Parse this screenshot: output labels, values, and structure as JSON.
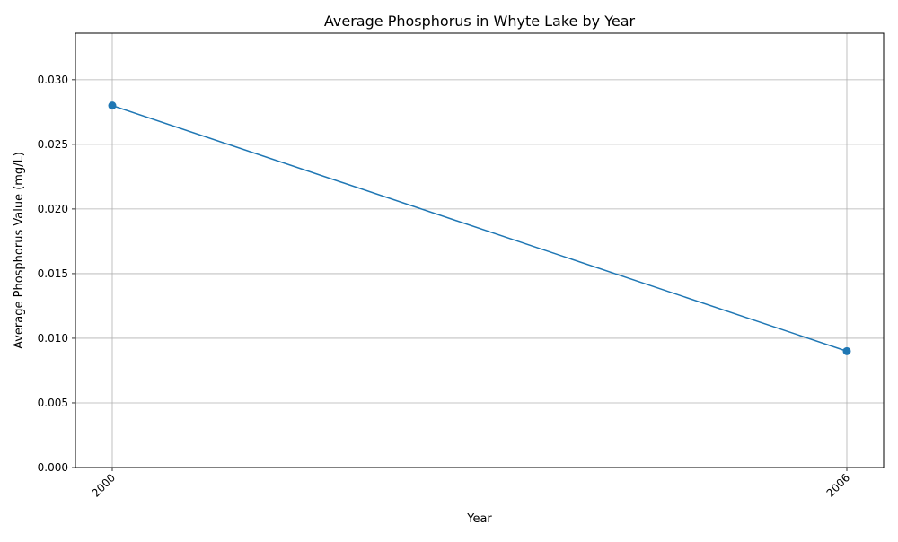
{
  "chart_data": {
    "type": "line",
    "title": "Average Phosphorus in Whyte Lake by Year",
    "xlabel": "Year",
    "ylabel": "Average Phosphorus Value (mg/L)",
    "x": [
      "2000",
      "2006"
    ],
    "series": [
      {
        "values": [
          0.028,
          0.009
        ],
        "color": "#1f77b4",
        "marker": "circle"
      }
    ],
    "ylim": [
      0,
      0.0336
    ],
    "y_ticks": [
      "0.000",
      "0.005",
      "0.010",
      "0.015",
      "0.020",
      "0.025",
      "0.030"
    ],
    "grid": true,
    "legend": "none",
    "x_tick_rotation": "45deg"
  }
}
